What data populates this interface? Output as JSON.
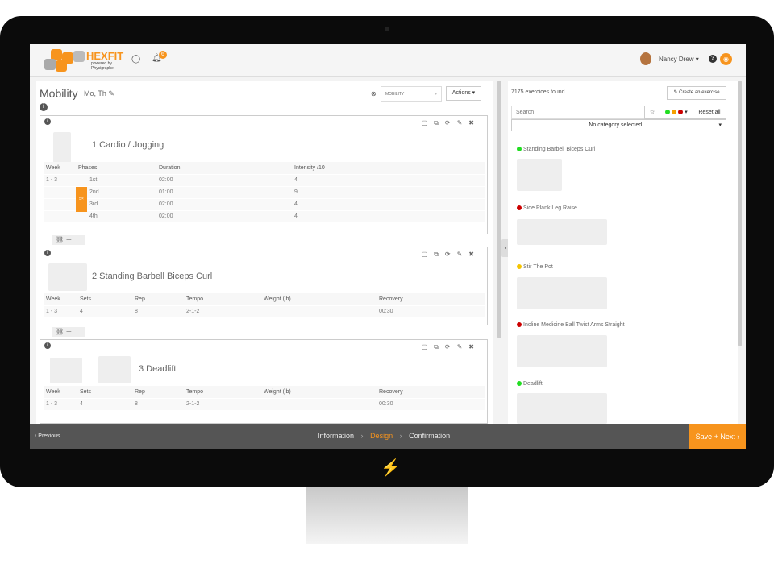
{
  "header": {
    "brand": "HEXFIT",
    "brand_sub": "powered by Physigraphe",
    "notifications": "6",
    "user": "Nancy Drew",
    "help": "?"
  },
  "program": {
    "title": "Mobility",
    "days": "Mo, Th",
    "category_select": "MOBILITY",
    "actions": "Actions ▾"
  },
  "blocks": [
    {
      "name": "1 Cardio / Jogging",
      "columns": [
        "Week",
        "Phases",
        "Duration",
        "Intensity /10"
      ],
      "week": "1 - 3",
      "repeat": "5×",
      "rows": [
        [
          "1st",
          "02:00",
          "4"
        ],
        [
          "2nd",
          "01:00",
          "9"
        ],
        [
          "3rd",
          "02:00",
          "4"
        ],
        [
          "4th",
          "02:00",
          "4"
        ]
      ]
    },
    {
      "name": "2 Standing Barbell Biceps Curl",
      "columns": [
        "Week",
        "Sets",
        "Rep",
        "Tempo",
        "Weight (lb)",
        "Recovery"
      ],
      "rows": [
        [
          "1 - 3",
          "4",
          "8",
          "2-1-2",
          "",
          "00:30"
        ]
      ]
    },
    {
      "name": "3 Deadlift",
      "columns": [
        "Week",
        "Sets",
        "Rep",
        "Tempo",
        "Weight (lb)",
        "Recovery"
      ],
      "rows": [
        [
          "1 - 3",
          "4",
          "8",
          "2-1-2",
          "",
          "00:30"
        ]
      ]
    }
  ],
  "library": {
    "count": "7175 exercices found",
    "create": "Create an exercise",
    "search_placeholder": "Search",
    "reset": "Reset all",
    "category": "No category selected",
    "exercises": [
      {
        "name": "Standing Barbell Biceps Curl",
        "color": "#22dd22"
      },
      {
        "name": "Side Plank Leg Raise",
        "color": "#cc0000"
      },
      {
        "name": "Stir The Pot",
        "color": "#f5c400"
      },
      {
        "name": "Incline Medicine Ball Twist Arms Straight",
        "color": "#cc0000"
      },
      {
        "name": "Deadlift",
        "color": "#22dd22"
      }
    ]
  },
  "footer": {
    "previous": "‹ Previous",
    "steps": [
      "Information",
      "Design",
      "Confirmation"
    ],
    "active_step": "Design",
    "next": "Save + Next ›"
  },
  "colors": {
    "accent": "#f7941d",
    "footer": "#555555"
  }
}
